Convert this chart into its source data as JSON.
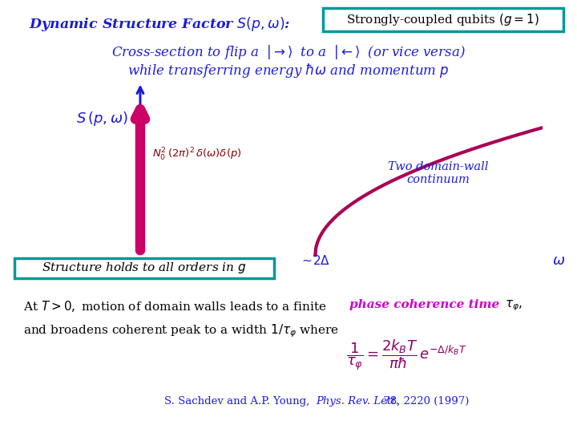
{
  "title_text": "Dynamic Structure Factor $S(p,\\omega)$:",
  "title_color": "#1C1CD8",
  "box_text": "Strongly-coupled qubits $(g = 1)$",
  "box_color": "#009999",
  "line1": "Cross-section to flip a $\\;|{\\rightarrow}\\rangle\\;$ to a $\\;|{\\leftarrow}\\rangle\\;$ (or vice versa)",
  "line2": "while transferring energy $\\hbar\\omega$ and momentum $p$",
  "ylabel_text": "$S\\,(p,\\omega)$",
  "delta_label": "$\\sim\\!2\\Delta$",
  "omega_label": "$\\omega$",
  "arrow_label": "$N_0^2\\,(2\\pi)^2\\,\\delta(\\omega)\\delta(p)$",
  "annotation_text": "Two domain-wall\ncontinuum",
  "annotation_color": "#1C1CD8",
  "box2_text": "Structure holds to all orders in $g$",
  "box2_color": "#009999",
  "axis_color": "#1C1CD8",
  "curve_color": "#AA0055",
  "arrow_color": "#CC0066",
  "arrow_label_color": "#880000",
  "background": "#FFFFFF",
  "text_color_black": "#000000",
  "phase_color": "#CC00CC",
  "formula_color": "#880066",
  "citation_color": "#1C1CD8"
}
